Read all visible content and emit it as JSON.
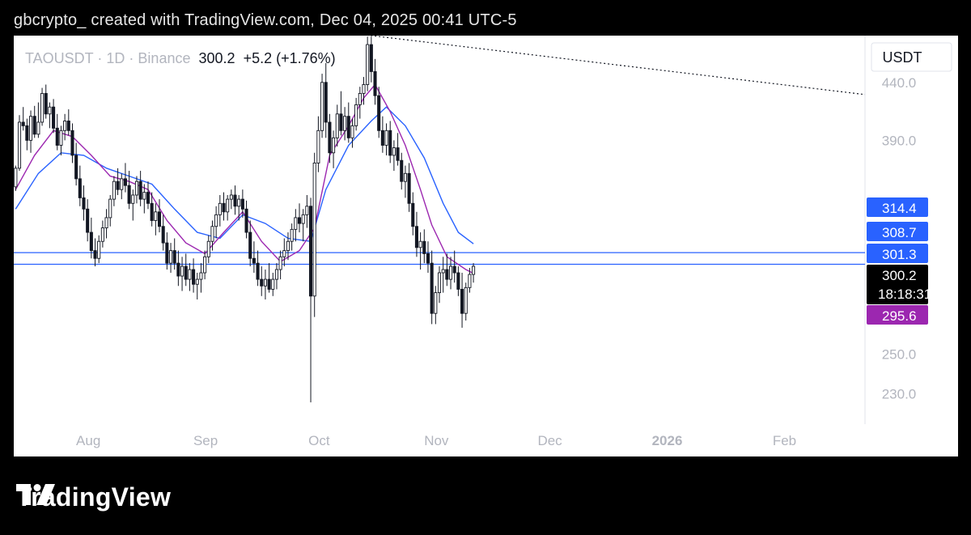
{
  "header": {
    "text": "gbcrypto_  created with TradingView.com, Dec 04, 2025 00:41 UTC-5"
  },
  "symbol_line": {
    "symbol": "TAOUSDT",
    "sep1": "·",
    "interval": "1D",
    "sep2": "·",
    "exchange": "Binance",
    "price": "300.2",
    "change": "+5.2",
    "change_pct": "(+1.76%)"
  },
  "currency_label": "USDT",
  "brand": {
    "name": "TradingView"
  },
  "colors": {
    "bull": "#131722",
    "bear": "#131722",
    "ema_fast": "#9c27b0",
    "ema_slow": "#2962ff",
    "line": "#2962ff",
    "price_tag": "#000000",
    "ema_tag": "#9c27b0",
    "blue_tag": "#2962ff"
  },
  "chart_data": {
    "type": "candlestick",
    "instrument": "TAOUSDT",
    "interval": "1D",
    "exchange": "Binance",
    "quote": "USDT",
    "ylim": [
      216,
      485
    ],
    "y_scale": "log",
    "y_ticks": [
      "440.0",
      "390.0",
      "250.0",
      "230.0"
    ],
    "x_ticks": [
      {
        "label": "Aug",
        "date": "2025-08-01",
        "bold": false
      },
      {
        "label": "Sep",
        "date": "2025-09-01",
        "bold": false
      },
      {
        "label": "Oct",
        "date": "2025-10-01",
        "bold": false
      },
      {
        "label": "Nov",
        "date": "2025-11-01",
        "bold": false
      },
      {
        "label": "Dec",
        "date": "2025-12-01",
        "bold": false
      },
      {
        "label": "2026",
        "date": "2026-01-01",
        "bold": true
      },
      {
        "label": "Feb",
        "date": "2026-02-01",
        "bold": false
      }
    ],
    "x_range": [
      "2025-07-14",
      "2026-02-24"
    ],
    "candle_start_date": "2025-07-14",
    "candles": [
      [
        354,
        370,
        351,
        368
      ],
      [
        368,
        411,
        366,
        405
      ],
      [
        405,
        418,
        398,
        402
      ],
      [
        402,
        408,
        382,
        390
      ],
      [
        390,
        415,
        380,
        410
      ],
      [
        410,
        419,
        392,
        395
      ],
      [
        395,
        422,
        392,
        405
      ],
      [
        405,
        435,
        402,
        430
      ],
      [
        430,
        438,
        408,
        412
      ],
      [
        412,
        422,
        400,
        418
      ],
      [
        418,
        425,
        396,
        400
      ],
      [
        400,
        412,
        382,
        386
      ],
      [
        386,
        402,
        378,
        398
      ],
      [
        398,
        412,
        390,
        406
      ],
      [
        406,
        416,
        394,
        398
      ],
      [
        398,
        404,
        372,
        378
      ],
      [
        378,
        388,
        355,
        360
      ],
      [
        360,
        370,
        340,
        346
      ],
      [
        346,
        355,
        330,
        338
      ],
      [
        338,
        345,
        316,
        322
      ],
      [
        322,
        332,
        305,
        310
      ],
      [
        310,
        318,
        300,
        305
      ],
      [
        305,
        320,
        302,
        316
      ],
      [
        316,
        330,
        312,
        325
      ],
      [
        325,
        338,
        318,
        332
      ],
      [
        332,
        348,
        326,
        345
      ],
      [
        345,
        362,
        340,
        358
      ],
      [
        358,
        368,
        348,
        352
      ],
      [
        352,
        364,
        345,
        360
      ],
      [
        360,
        372,
        350,
        355
      ],
      [
        355,
        366,
        338,
        342
      ],
      [
        342,
        352,
        330,
        348
      ],
      [
        348,
        362,
        342,
        358
      ],
      [
        358,
        366,
        340,
        345
      ],
      [
        345,
        356,
        335,
        350
      ],
      [
        350,
        358,
        338,
        342
      ],
      [
        342,
        350,
        326,
        330
      ],
      [
        330,
        342,
        320,
        336
      ],
      [
        336,
        345,
        322,
        326
      ],
      [
        326,
        334,
        310,
        315
      ],
      [
        315,
        322,
        298,
        302
      ],
      [
        302,
        315,
        296,
        310
      ],
      [
        310,
        318,
        298,
        302
      ],
      [
        302,
        310,
        288,
        294
      ],
      [
        294,
        306,
        285,
        300
      ],
      [
        300,
        308,
        288,
        292
      ],
      [
        292,
        302,
        285,
        298
      ],
      [
        298,
        305,
        284,
        289
      ],
      [
        289,
        296,
        280,
        292
      ],
      [
        292,
        302,
        284,
        296
      ],
      [
        296,
        310,
        292,
        306
      ],
      [
        306,
        320,
        302,
        316
      ],
      [
        316,
        330,
        310,
        326
      ],
      [
        326,
        340,
        318,
        334
      ],
      [
        334,
        348,
        326,
        342
      ],
      [
        342,
        350,
        330,
        336
      ],
      [
        336,
        348,
        330,
        345
      ],
      [
        345,
        352,
        338,
        348
      ],
      [
        348,
        355,
        334,
        340
      ],
      [
        340,
        348,
        330,
        345
      ],
      [
        345,
        352,
        332,
        338
      ],
      [
        338,
        344,
        318,
        322
      ],
      [
        322,
        330,
        300,
        305
      ],
      [
        305,
        316,
        296,
        302
      ],
      [
        302,
        310,
        288,
        292
      ],
      [
        292,
        300,
        282,
        288
      ],
      [
        288,
        298,
        280,
        292
      ],
      [
        292,
        302,
        284,
        286
      ],
      [
        286,
        296,
        282,
        292
      ],
      [
        292,
        302,
        286,
        298
      ],
      [
        298,
        310,
        292,
        306
      ],
      [
        306,
        318,
        300,
        310
      ],
      [
        310,
        322,
        304,
        316
      ],
      [
        316,
        328,
        310,
        324
      ],
      [
        324,
        338,
        316,
        332
      ],
      [
        332,
        342,
        322,
        328
      ],
      [
        328,
        338,
        316,
        334
      ],
      [
        334,
        348,
        325,
        340
      ],
      [
        340,
        346,
        226,
        282
      ],
      [
        282,
        380,
        270,
        372
      ],
      [
        372,
        410,
        365,
        398
      ],
      [
        398,
        448,
        392,
        440
      ],
      [
        440,
        458,
        392,
        405
      ],
      [
        405,
        412,
        372,
        380
      ],
      [
        380,
        398,
        368,
        392
      ],
      [
        392,
        420,
        385,
        412
      ],
      [
        412,
        432,
        394,
        398
      ],
      [
        398,
        418,
        390,
        410
      ],
      [
        410,
        422,
        388,
        392
      ],
      [
        392,
        408,
        384,
        402
      ],
      [
        402,
        426,
        398,
        420
      ],
      [
        420,
        436,
        408,
        430
      ],
      [
        430,
        445,
        420,
        438
      ],
      [
        438,
        484,
        432,
        476
      ],
      [
        476,
        484,
        440,
        450
      ],
      [
        450,
        462,
        420,
        428
      ],
      [
        428,
        436,
        392,
        398
      ],
      [
        398,
        410,
        380,
        386
      ],
      [
        386,
        404,
        378,
        398
      ],
      [
        398,
        406,
        372,
        378
      ],
      [
        378,
        390,
        366,
        384
      ],
      [
        384,
        396,
        370,
        374
      ],
      [
        374,
        380,
        352,
        358
      ],
      [
        358,
        370,
        346,
        364
      ],
      [
        364,
        372,
        336,
        342
      ],
      [
        342,
        350,
        320,
        326
      ],
      [
        326,
        336,
        306,
        312
      ],
      [
        312,
        322,
        298,
        316
      ],
      [
        316,
        324,
        302,
        308
      ],
      [
        308,
        316,
        296,
        302
      ],
      [
        302,
        310,
        266,
        272
      ],
      [
        272,
        288,
        266,
        284
      ],
      [
        284,
        300,
        278,
        296
      ],
      [
        296,
        306,
        284,
        298
      ],
      [
        298,
        308,
        288,
        292
      ],
      [
        292,
        306,
        286,
        300
      ],
      [
        300,
        310,
        290,
        296
      ],
      [
        296,
        300,
        282,
        286
      ],
      [
        286,
        296,
        264,
        272
      ],
      [
        272,
        290,
        268,
        287
      ],
      [
        287,
        299,
        284,
        295
      ],
      [
        295,
        302,
        290,
        300
      ]
    ],
    "ema_fast": [
      [
        0,
        352
      ],
      [
        5,
        378
      ],
      [
        10,
        398
      ],
      [
        15,
        393
      ],
      [
        20,
        378
      ],
      [
        25,
        362
      ],
      [
        30,
        358
      ],
      [
        35,
        352
      ],
      [
        40,
        330
      ],
      [
        45,
        315
      ],
      [
        50,
        308
      ],
      [
        55,
        322
      ],
      [
        60,
        336
      ],
      [
        65,
        316
      ],
      [
        70,
        303
      ],
      [
        75,
        310
      ],
      [
        79,
        325
      ],
      [
        83,
        378
      ],
      [
        88,
        402
      ],
      [
        92,
        426
      ],
      [
        95,
        438
      ],
      [
        99,
        414
      ],
      [
        103,
        386
      ],
      [
        107,
        352
      ],
      [
        110,
        327
      ],
      [
        114,
        306
      ],
      [
        119,
        298
      ],
      [
        121,
        295.6
      ]
    ],
    "ema_slow": [
      [
        0,
        338
      ],
      [
        6,
        364
      ],
      [
        12,
        380
      ],
      [
        18,
        378
      ],
      [
        24,
        368
      ],
      [
        30,
        362
      ],
      [
        36,
        356
      ],
      [
        42,
        338
      ],
      [
        48,
        322
      ],
      [
        54,
        318
      ],
      [
        60,
        334
      ],
      [
        66,
        328
      ],
      [
        72,
        318
      ],
      [
        78,
        316
      ],
      [
        82,
        352
      ],
      [
        88,
        386
      ],
      [
        94,
        406
      ],
      [
        98,
        418
      ],
      [
        103,
        402
      ],
      [
        108,
        376
      ],
      [
        113,
        342
      ],
      [
        117,
        322
      ],
      [
        121,
        314.4
      ]
    ],
    "trendline": {
      "from": [
        "2025-10-10",
        488
      ],
      "to": [
        "2026-02-24",
        429
      ],
      "style": "dotted"
    },
    "horizontal_lines": [
      308.7,
      301.3
    ],
    "price_labels": [
      {
        "value": "314.4",
        "color": "blue",
        "subtext": ""
      },
      {
        "value": "308.7",
        "color": "blue",
        "subtext": ""
      },
      {
        "value": "301.3",
        "color": "blue",
        "subtext": ""
      },
      {
        "value": "300.2",
        "color": "black",
        "subtext": "18:18:31"
      },
      {
        "value": "295.6",
        "color": "purple",
        "subtext": ""
      }
    ],
    "last_price": 300.2
  }
}
